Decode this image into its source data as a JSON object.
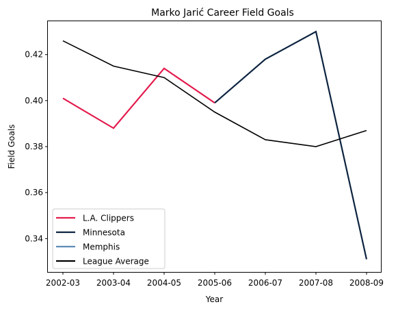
{
  "chart_data": {
    "type": "line",
    "title": "Marko Jarić Career Field Goals",
    "xlabel": "Year",
    "ylabel": "Field Goals",
    "categories": [
      "2002-03",
      "2003-04",
      "2004-05",
      "2005-06",
      "2006-07",
      "2007-08",
      "2008-09"
    ],
    "yticks": [
      "0.34",
      "0.36",
      "0.38",
      "0.40",
      "0.42"
    ],
    "ylim": [
      0.3255,
      0.4345
    ],
    "grid": false,
    "legend_position": "lower-left",
    "series": [
      {
        "name": "L.A. Clippers",
        "color": "#e31b4d",
        "points": [
          [
            0,
            0.401
          ],
          [
            1,
            0.388
          ],
          [
            2,
            0.414
          ],
          [
            3,
            0.399
          ]
        ]
      },
      {
        "name": "Minnesota",
        "color": "#0c2340",
        "points": [
          [
            3,
            0.399
          ],
          [
            4,
            0.418
          ],
          [
            5,
            0.43
          ],
          [
            6,
            0.331
          ]
        ]
      },
      {
        "name": "Memphis",
        "color": "#5d8bb5",
        "points": []
      },
      {
        "name": "League Average",
        "color": "#000000",
        "points": [
          [
            0,
            0.426
          ],
          [
            1,
            0.415
          ],
          [
            2,
            0.41
          ],
          [
            3,
            0.395
          ],
          [
            4,
            0.383
          ],
          [
            5,
            0.38
          ],
          [
            6,
            0.387
          ]
        ]
      }
    ]
  }
}
